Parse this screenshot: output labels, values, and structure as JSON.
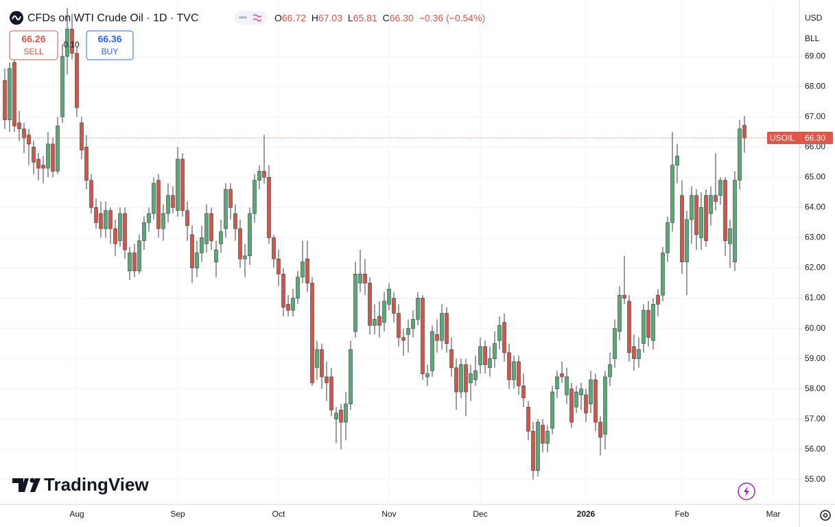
{
  "header": {
    "title": "CFDs on WTI Crude Oil · 1D · TVC",
    "open_label": "O",
    "open": "66.72",
    "high_label": "H",
    "high": "67.03",
    "low_label": "L",
    "low": "65.81",
    "close_label": "C",
    "close": "66.30",
    "change": "−0.36 (−0.54%)"
  },
  "trade": {
    "sell_price": "66.26",
    "sell_label": "SELL",
    "spread": "0.10",
    "buy_price": "66.36",
    "buy_label": "BUY"
  },
  "price_axis": {
    "currency": "USD",
    "unit": "BLL"
  },
  "branding": "TradingView",
  "chart_data": {
    "type": "candlestick",
    "up_color": "#5aa978",
    "down_color": "#d0574a",
    "grid": true,
    "ylim": [
      54.18,
      70.75
    ],
    "yticks": [
      {
        "value": 55,
        "label": "55.00"
      },
      {
        "value": 56,
        "label": "56.00"
      },
      {
        "value": 57,
        "label": "57.00"
      },
      {
        "value": 58,
        "label": "58.00"
      },
      {
        "value": 59,
        "label": "59.00"
      },
      {
        "value": 60,
        "label": "60.00"
      },
      {
        "value": 61,
        "label": "61.00"
      },
      {
        "value": 62,
        "label": "62.00"
      },
      {
        "value": 63,
        "label": "63.00"
      },
      {
        "value": 64,
        "label": "64.00"
      },
      {
        "value": 65,
        "label": "65.00"
      },
      {
        "value": 66,
        "label": "66.00"
      },
      {
        "value": 67,
        "label": "67.00"
      },
      {
        "value": 68,
        "label": "68.00"
      },
      {
        "value": 69,
        "label": "69.00"
      }
    ],
    "last_price": {
      "symbol": "USOIL",
      "value": 66.3,
      "label": "66.30",
      "color": "#e0574a"
    },
    "categories": [
      null,
      null,
      null,
      null,
      null,
      null,
      null,
      null,
      null,
      null,
      null,
      null,
      null,
      null,
      null,
      "Aug",
      null,
      null,
      null,
      null,
      null,
      null,
      null,
      null,
      null,
      null,
      null,
      null,
      null,
      null,
      null,
      null,
      null,
      null,
      null,
      null,
      "Sep",
      null,
      null,
      null,
      null,
      null,
      null,
      null,
      null,
      null,
      null,
      null,
      null,
      null,
      null,
      null,
      null,
      null,
      null,
      null,
      null,
      "Oct",
      null,
      null,
      null,
      null,
      null,
      null,
      null,
      null,
      null,
      null,
      null,
      null,
      null,
      null,
      null,
      null,
      null,
      null,
      null,
      null,
      null,
      null,
      "Nov",
      null,
      null,
      null,
      null,
      null,
      null,
      null,
      null,
      null,
      null,
      null,
      null,
      null,
      null,
      null,
      null,
      null,
      null,
      "Dec",
      null,
      null,
      null,
      null,
      null,
      null,
      null,
      null,
      null,
      null,
      null,
      null,
      null,
      null,
      null,
      null,
      null,
      null,
      null,
      null,
      null,
      "2026",
      null,
      null,
      null,
      null,
      null,
      null,
      null,
      null,
      null,
      null,
      null,
      null,
      null,
      null,
      null,
      null,
      null,
      null,
      null,
      "Feb",
      null,
      null,
      null,
      null,
      null,
      null,
      null,
      null,
      null,
      null,
      null,
      null,
      null,
      null,
      null,
      null,
      null,
      null,
      "Mar",
      null,
      null,
      null,
      null,
      null
    ],
    "open": [
      68.2,
      66.9,
      68.8,
      66.8,
      66.6,
      66.4,
      66.0,
      65.6,
      65.4,
      65.3,
      66.1,
      65.2,
      67.0,
      69.0,
      69.9,
      69.1,
      66.8,
      66.0,
      64.9,
      64.0,
      63.8,
      63.3,
      63.9,
      63.3,
      62.9,
      63.8,
      61.9,
      62.5,
      61.9,
      62.9,
      63.5,
      63.8,
      64.9,
      63.3,
      63.8,
      64.4,
      63.9,
      65.6,
      63.9,
      63.1,
      62.0,
      62.5,
      62.8,
      63.8,
      62.2,
      62.8,
      63.3,
      64.6,
      63.8,
      63.3,
      62.3,
      62.4,
      63.8,
      64.9,
      65.2,
      65.0,
      63.0,
      62.3,
      61.8,
      60.8,
      60.6,
      61.0,
      61.7,
      62.3,
      61.5,
      58.7,
      59.3,
      58.4,
      58.4,
      57.0,
      57.3,
      56.9,
      57.5,
      59.9,
      61.5,
      61.8,
      61.5,
      60.1,
      60.4,
      60.2,
      60.8,
      61.0,
      60.5,
      59.7,
      59.8,
      60.0,
      60.3,
      61.0,
      58.4,
      58.6,
      59.8,
      59.6,
      60.5,
      59.3,
      58.7,
      57.9,
      58.8,
      58.2,
      58.3,
      58.8,
      59.4,
      58.7,
      59.0,
      59.6,
      60.2,
      59.2,
      58.3,
      58.9,
      58.1,
      57.4,
      56.6,
      55.3,
      56.8,
      56.2,
      56.7,
      58.0,
      58.5,
      57.8,
      58.0,
      57.4,
      57.8,
      57.8,
      57.5,
      58.3,
      56.9,
      56.5,
      58.4,
      59.0,
      59.9,
      61.1,
      60.9,
      59.4,
      59.0,
      59.5,
      60.6,
      59.6,
      61.1,
      61.1,
      62.5,
      63.5,
      65.4,
      64.4,
      62.2,
      63.6,
      64.4,
      63.0,
      64.4,
      63.8,
      64.4,
      64.4,
      64.9,
      62.8,
      62.2,
      64.9,
      66.72,
      null,
      null,
      null,
      null,
      null,
      null,
      null,
      null,
      null,
      null,
      null
    ],
    "high": [
      68.6,
      68.8,
      69.0,
      67.2,
      66.8,
      66.6,
      66.2,
      65.8,
      65.7,
      66.5,
      66.3,
      67.0,
      69.4,
      70.6,
      70.4,
      69.3,
      67.0,
      66.4,
      65.1,
      64.3,
      64.2,
      64.2,
      64.0,
      63.6,
      64.0,
      64.0,
      62.7,
      62.8,
      63.1,
      63.7,
      64.0,
      65.0,
      65.1,
      64.1,
      64.8,
      64.7,
      66.0,
      65.8,
      64.2,
      63.4,
      62.9,
      63.4,
      64.1,
      64.0,
      62.9,
      63.6,
      64.8,
      64.8,
      64.1,
      63.6,
      62.8,
      64.0,
      65.1,
      65.4,
      66.4,
      65.4,
      63.1,
      62.6,
      62.0,
      61.1,
      61.3,
      61.9,
      62.9,
      62.9,
      61.7,
      59.6,
      59.5,
      58.9,
      58.7,
      57.4,
      57.5,
      57.9,
      59.6,
      62.2,
      62.6,
      62.3,
      61.7,
      60.8,
      60.9,
      61.2,
      61.5,
      61.2,
      60.8,
      60.0,
      60.3,
      60.6,
      61.2,
      61.1,
      58.8,
      60.1,
      60.3,
      60.8,
      60.7,
      59.7,
      59.0,
      59.0,
      59.0,
      58.8,
      59.1,
      59.7,
      59.6,
      59.4,
      59.9,
      60.4,
      60.5,
      59.5,
      59.1,
      59.1,
      58.5,
      57.6,
      56.9,
      57.0,
      57.0,
      56.8,
      58.1,
      58.6,
      58.9,
      58.7,
      58.2,
      58.1,
      58.2,
      58.0,
      58.6,
      58.5,
      57.1,
      58.6,
      59.2,
      60.3,
      61.4,
      62.4,
      61.1,
      59.8,
      59.7,
      60.8,
      60.9,
      61.0,
      61.3,
      62.7,
      63.7,
      66.5,
      66.1,
      64.9,
      63.9,
      64.7,
      64.6,
      64.5,
      64.6,
      64.7,
      65.8,
      65.0,
      65.0,
      63.6,
      65.2,
      66.9,
      67.03,
      null,
      null,
      null,
      null,
      null,
      null,
      null,
      null,
      null,
      null,
      null
    ],
    "low": [
      66.6,
      66.5,
      66.5,
      66.2,
      65.8,
      65.4,
      65.1,
      64.9,
      64.8,
      65.0,
      65.0,
      65.1,
      66.8,
      68.4,
      68.9,
      67.0,
      65.6,
      64.6,
      63.8,
      63.3,
      63.0,
      63.0,
      62.8,
      62.4,
      62.7,
      62.3,
      61.6,
      61.7,
      61.8,
      62.6,
      63.2,
      63.6,
      63.0,
      62.9,
      63.5,
      63.8,
      63.7,
      63.7,
      62.9,
      61.5,
      61.7,
      62.2,
      62.5,
      62.6,
      61.7,
      62.5,
      63.0,
      63.6,
      62.9,
      62.0,
      61.7,
      62.1,
      63.5,
      64.6,
      64.8,
      62.8,
      62.0,
      61.4,
      60.4,
      60.4,
      60.4,
      60.8,
      61.5,
      61.2,
      58.1,
      58.3,
      58.0,
      57.6,
      57.1,
      56.2,
      56.0,
      56.3,
      57.3,
      59.7,
      61.2,
      61.1,
      59.8,
      59.8,
      59.7,
      59.9,
      60.6,
      60.2,
      59.4,
      59.1,
      59.2,
      59.7,
      60.1,
      58.3,
      58.1,
      58.4,
      59.2,
      59.3,
      59.2,
      58.4,
      57.3,
      57.7,
      57.1,
      57.6,
      58.1,
      58.5,
      58.5,
      58.4,
      58.7,
      59.3,
      58.9,
      58.0,
      58.0,
      57.8,
      57.4,
      56.3,
      55.0,
      55.1,
      55.9,
      55.9,
      56.5,
      57.7,
      58.2,
      57.5,
      56.7,
      57.2,
      57.3,
      56.9,
      57.2,
      56.6,
      55.8,
      56.0,
      58.1,
      58.7,
      59.6,
      60.8,
      58.9,
      58.6,
      58.7,
      59.2,
      59.4,
      59.3,
      60.4,
      60.9,
      62.2,
      63.2,
      64.8,
      61.8,
      61.1,
      62.8,
      62.6,
      62.6,
      62.7,
      63.4,
      63.9,
      64.1,
      62.4,
      62.0,
      61.9,
      64.6,
      65.81,
      null,
      null,
      null,
      null,
      null,
      null,
      null,
      null,
      null,
      null,
      null
    ],
    "close": [
      66.9,
      68.6,
      66.7,
      66.6,
      66.3,
      66.1,
      65.5,
      65.3,
      65.3,
      66.1,
      65.2,
      66.7,
      69.0,
      69.9,
      69.1,
      67.3,
      65.9,
      64.9,
      64.0,
      63.5,
      63.3,
      63.9,
      63.3,
      62.8,
      63.8,
      62.6,
      62.5,
      61.9,
      62.9,
      63.5,
      63.8,
      64.8,
      63.3,
      63.8,
      64.4,
      64.0,
      65.6,
      63.9,
      63.4,
      62.0,
      62.5,
      63.0,
      63.8,
      62.9,
      62.6,
      63.2,
      64.6,
      64.0,
      63.3,
      62.3,
      62.4,
      63.8,
      64.9,
      65.2,
      65.0,
      63.0,
      62.3,
      61.8,
      60.7,
      60.6,
      61.0,
      61.7,
      62.2,
      61.5,
      58.2,
      59.3,
      58.4,
      58.2,
      57.3,
      57.2,
      56.9,
      57.5,
      59.3,
      61.8,
      61.8,
      61.5,
      60.1,
      60.3,
      60.1,
      60.9,
      61.3,
      60.5,
      59.7,
      59.6,
      60.0,
      60.3,
      61.0,
      58.5,
      58.5,
      59.9,
      59.6,
      60.5,
      59.5,
      58.7,
      57.9,
      58.8,
      57.9,
      58.5,
      58.6,
      59.4,
      58.8,
      59.0,
      59.5,
      60.1,
      59.2,
      58.3,
      58.9,
      58.1,
      57.7,
      56.6,
      55.3,
      56.9,
      56.2,
      56.6,
      57.9,
      58.4,
      58.4,
      58.4,
      56.9,
      57.9,
      58.0,
      57.2,
      58.3,
      56.9,
      56.4,
      58.4,
      58.8,
      60.0,
      61.1,
      61.0,
      59.2,
      59.0,
      59.3,
      60.6,
      59.7,
      60.8,
      60.8,
      62.5,
      63.5,
      65.4,
      65.7,
      62.2,
      63.6,
      64.4,
      63.1,
      64.0,
      62.9,
      64.4,
      64.2,
      64.9,
      62.9,
      63.3,
      64.9,
      66.6,
      66.3,
      null,
      null,
      null,
      null,
      null,
      null,
      null,
      null,
      null,
      null,
      null
    ]
  }
}
